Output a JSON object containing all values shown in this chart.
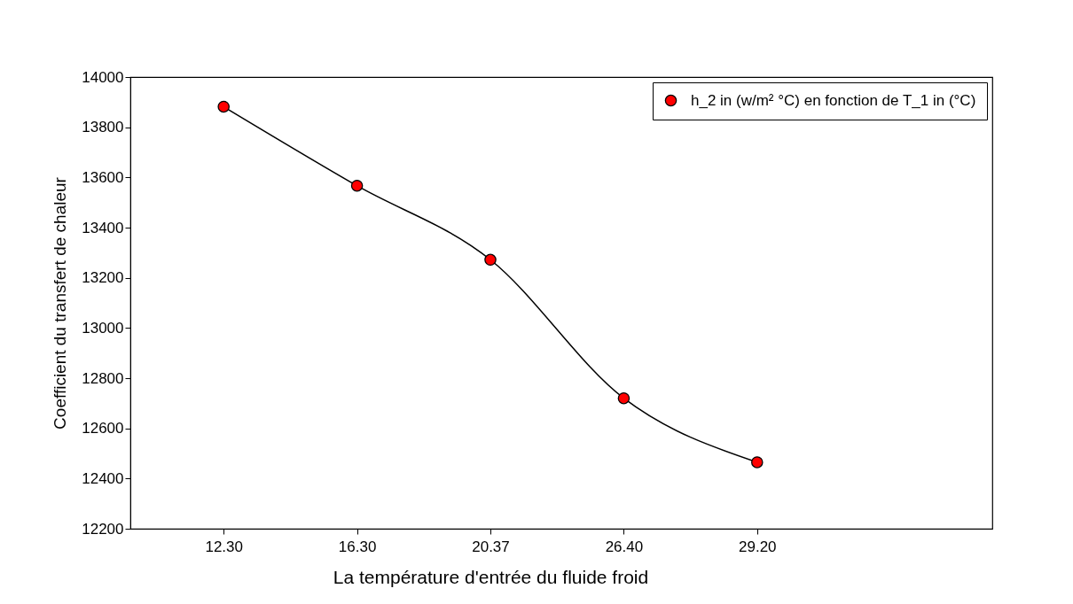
{
  "chart_data": {
    "type": "line",
    "xlabel": "La température d'entrée du fluide froid",
    "ylabel": "Coefficient du transfert de chaleur",
    "categories": [
      "12.30",
      "16.30",
      "20.37",
      "26.40",
      "29.20"
    ],
    "series": [
      {
        "name": "h_2 in (w/m² °C) en fonction de T_1 in (°C)",
        "color": "#ff0000",
        "values": [
          13882,
          13567,
          13272,
          12720,
          12465
        ]
      }
    ],
    "ylim": [
      12200,
      14000
    ],
    "yticks": [
      12200,
      12400,
      12600,
      12800,
      13000,
      13200,
      13400,
      13600,
      13800,
      14000
    ],
    "legend": "top right",
    "marker": "circle",
    "line_style": "solid"
  }
}
